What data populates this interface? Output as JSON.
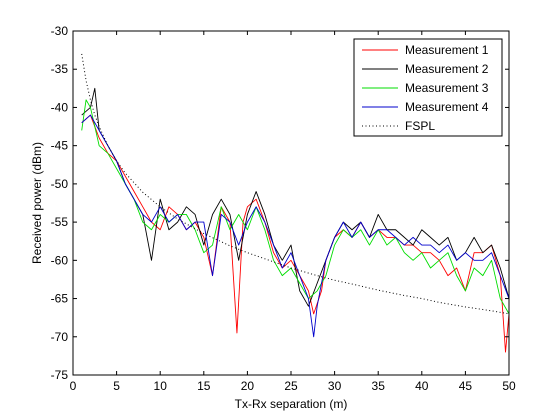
{
  "chart_data": {
    "type": "line",
    "xlabel": "Tx-Rx separation (m)",
    "ylabel": "Received power (dBm)",
    "xlim": [
      0,
      50
    ],
    "ylim": [
      -75,
      -30
    ],
    "xticks": [
      0,
      5,
      10,
      15,
      20,
      25,
      30,
      35,
      40,
      45,
      50
    ],
    "yticks": [
      -30,
      -35,
      -40,
      -45,
      -50,
      -55,
      -60,
      -65,
      -70,
      -75
    ],
    "grid": false,
    "legend_position": "top-right",
    "series": [
      {
        "name": "Measurement 1",
        "color": "#ff0000",
        "style": "solid",
        "x": [
          1,
          2,
          3,
          4,
          5,
          6,
          7,
          8,
          9,
          10,
          11,
          12,
          13,
          14,
          15,
          16,
          17,
          18,
          18.8,
          19.5,
          20,
          21,
          22,
          23,
          24,
          25,
          26,
          27,
          27.6,
          28.5,
          29,
          30,
          31,
          32,
          33,
          34,
          35,
          36,
          37,
          38,
          39,
          40,
          41,
          42,
          43,
          44,
          45,
          46,
          47,
          48,
          49,
          49.6,
          50
        ],
        "y": [
          -42,
          -41,
          -44,
          -46,
          -47,
          -49,
          -51,
          -53,
          -55,
          -56,
          -53,
          -54,
          -56,
          -55,
          -57,
          -62,
          -53,
          -55,
          -69.5,
          -55,
          -53,
          -52,
          -55,
          -59,
          -61,
          -60,
          -62,
          -64,
          -67,
          -64,
          -60,
          -57,
          -56,
          -57,
          -55,
          -57,
          -56,
          -57,
          -57,
          -58,
          -58,
          -59,
          -59,
          -60,
          -62,
          -61,
          -64,
          -59,
          -59,
          -58,
          -62,
          -72,
          -67
        ]
      },
      {
        "name": "Measurement 2",
        "color": "#000000",
        "style": "solid",
        "x": [
          1,
          2,
          2.5,
          3,
          4,
          5,
          6,
          7,
          8,
          9,
          10,
          11,
          12,
          13,
          14,
          15,
          16,
          17,
          18,
          19,
          20,
          21,
          22,
          23,
          24,
          25,
          26,
          27,
          28,
          29,
          30,
          31,
          32,
          33,
          34,
          35,
          36,
          37,
          38,
          39,
          40,
          41,
          42,
          43,
          44,
          45,
          46,
          47,
          48,
          49,
          50
        ],
        "y": [
          -41,
          -40,
          -37.5,
          -43,
          -45,
          -47,
          -50,
          -52,
          -54,
          -60,
          -52,
          -56,
          -55,
          -53,
          -54,
          -58,
          -54,
          -52,
          -54,
          -60,
          -54,
          -51,
          -54,
          -58,
          -60,
          -58,
          -64,
          -66,
          -63,
          -60,
          -57,
          -55,
          -56,
          -55,
          -57,
          -54,
          -56,
          -56,
          -57,
          -58,
          -56,
          -57,
          -58,
          -57,
          -60,
          -59,
          -57,
          -59,
          -58,
          -61,
          -65
        ]
      },
      {
        "name": "Measurement 3",
        "color": "#00dd00",
        "style": "solid",
        "x": [
          1,
          1.5,
          2,
          3,
          4,
          5,
          6,
          7,
          8,
          9,
          10,
          11,
          12,
          13,
          14,
          15,
          16,
          17,
          18,
          19,
          20,
          21,
          22,
          23,
          24,
          25,
          26,
          27,
          28,
          29,
          30,
          31,
          32,
          33,
          34,
          35,
          36,
          37,
          38,
          39,
          40,
          41,
          42,
          43,
          44,
          45,
          46,
          47,
          48,
          49,
          50
        ],
        "y": [
          -43,
          -39,
          -40,
          -45,
          -46,
          -48,
          -50,
          -52,
          -55,
          -56,
          -54,
          -55,
          -54,
          -54,
          -56,
          -59,
          -58,
          -53,
          -56,
          -54,
          -56,
          -53,
          -56,
          -60,
          -62,
          -61,
          -63,
          -65,
          -64,
          -62,
          -58,
          -56,
          -57,
          -56,
          -58,
          -56,
          -58,
          -57,
          -59,
          -60,
          -59,
          -61,
          -60,
          -59,
          -62,
          -64,
          -61,
          -62,
          -60,
          -65,
          -67
        ]
      },
      {
        "name": "Measurement 4",
        "color": "#0000cc",
        "style": "solid",
        "x": [
          1,
          2,
          3,
          4,
          5,
          6,
          7,
          8,
          9,
          10,
          11,
          12,
          13,
          14,
          15,
          16,
          17,
          18,
          19,
          20,
          21,
          22,
          23,
          24,
          25,
          26,
          27,
          27.6,
          28,
          29,
          30,
          31,
          32,
          33,
          34,
          35,
          36,
          37,
          38,
          39,
          40,
          41,
          42,
          43,
          44,
          45,
          46,
          47,
          48,
          49,
          50
        ],
        "y": [
          -42,
          -41,
          -43,
          -45,
          -47,
          -50,
          -52,
          -54,
          -55,
          -53,
          -55,
          -54,
          -56,
          -55,
          -55,
          -62,
          -54,
          -55,
          -58,
          -55,
          -53,
          -55,
          -58,
          -61,
          -59,
          -62,
          -65,
          -70,
          -66,
          -60,
          -57,
          -55,
          -57,
          -55,
          -57,
          -56,
          -56,
          -57,
          -58,
          -57,
          -58,
          -58,
          -59,
          -58,
          -60,
          -59,
          -60,
          -60,
          -59,
          -62,
          -65
        ]
      },
      {
        "name": "FSPL",
        "color": "#000000",
        "style": "dotted",
        "x": [
          1,
          1.5,
          2,
          2.5,
          3,
          4,
          5,
          6,
          8,
          10,
          12,
          15,
          18,
          20,
          22,
          25,
          28,
          30,
          32,
          35,
          38,
          40,
          42,
          45,
          48,
          50
        ],
        "y": [
          -33,
          -36.5,
          -39,
          -41,
          -42.5,
          -45,
          -47,
          -48.6,
          -51.1,
          -53,
          -54.6,
          -56.5,
          -58.1,
          -59,
          -59.8,
          -61,
          -62,
          -62.6,
          -63.1,
          -63.9,
          -64.6,
          -65,
          -65.5,
          -66.1,
          -66.6,
          -67
        ]
      }
    ]
  }
}
